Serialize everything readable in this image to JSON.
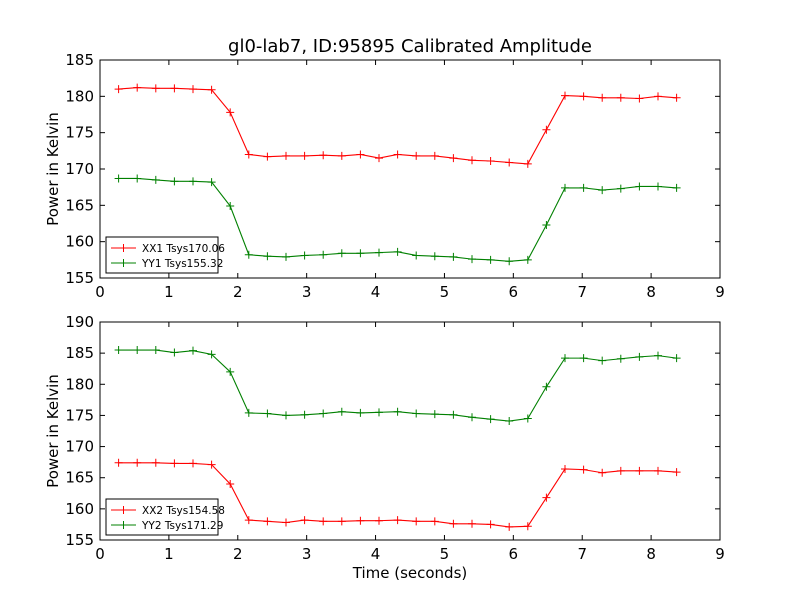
{
  "figure": {
    "title": "gl0-lab7, ID:95895 Calibrated Amplitude",
    "xlabel": "Time (seconds)"
  },
  "chart_data": [
    {
      "type": "line",
      "ylabel": "Power in Kelvin",
      "xlim": [
        0,
        9
      ],
      "ylim": [
        155,
        185
      ],
      "xticks": [
        0,
        1,
        2,
        3,
        4,
        5,
        6,
        7,
        8,
        9
      ],
      "yticks": [
        155,
        160,
        165,
        170,
        175,
        180,
        185
      ],
      "grid": false,
      "legend_position": "lower-left",
      "x": [
        0.27,
        0.54,
        0.81,
        1.08,
        1.35,
        1.62,
        1.89,
        2.16,
        2.43,
        2.7,
        2.97,
        3.24,
        3.51,
        3.78,
        4.05,
        4.32,
        4.59,
        4.86,
        5.13,
        5.4,
        5.67,
        5.94,
        6.21,
        6.48,
        6.75,
        7.02,
        7.29,
        7.56,
        7.83,
        8.1,
        8.37
      ],
      "series": [
        {
          "name": "XX1 Tsys170.06",
          "color": "#ff0000",
          "values": [
            181.0,
            181.2,
            181.1,
            181.1,
            181.0,
            180.9,
            177.8,
            172.0,
            171.7,
            171.8,
            171.8,
            171.9,
            171.8,
            172.0,
            171.5,
            172.0,
            171.8,
            171.8,
            171.5,
            171.2,
            171.1,
            170.9,
            170.7,
            175.4,
            180.1,
            180.0,
            179.8,
            179.8,
            179.7,
            180.0,
            179.8
          ]
        },
        {
          "name": "YY1 Tsys155.32",
          "color": "#008000",
          "values": [
            168.7,
            168.7,
            168.5,
            168.3,
            168.3,
            168.2,
            164.9,
            158.2,
            158.0,
            157.9,
            158.1,
            158.2,
            158.4,
            158.4,
            158.5,
            158.6,
            158.1,
            158.0,
            157.9,
            157.6,
            157.5,
            157.3,
            157.5,
            162.3,
            167.4,
            167.4,
            167.1,
            167.3,
            167.6,
            167.6,
            167.4
          ]
        }
      ]
    },
    {
      "type": "line",
      "ylabel": "Power in Kelvin",
      "xlim": [
        0,
        9
      ],
      "ylim": [
        155,
        190
      ],
      "xticks": [
        0,
        1,
        2,
        3,
        4,
        5,
        6,
        7,
        8,
        9
      ],
      "yticks": [
        155,
        160,
        165,
        170,
        175,
        180,
        185,
        190
      ],
      "grid": false,
      "legend_position": "lower-left",
      "x": [
        0.27,
        0.54,
        0.81,
        1.08,
        1.35,
        1.62,
        1.89,
        2.16,
        2.43,
        2.7,
        2.97,
        3.24,
        3.51,
        3.78,
        4.05,
        4.32,
        4.59,
        4.86,
        5.13,
        5.4,
        5.67,
        5.94,
        6.21,
        6.48,
        6.75,
        7.02,
        7.29,
        7.56,
        7.83,
        8.1,
        8.37
      ],
      "series": [
        {
          "name": "XX2 Tsys154.58",
          "color": "#ff0000",
          "values": [
            167.4,
            167.4,
            167.4,
            167.3,
            167.3,
            167.1,
            164.0,
            158.2,
            158.0,
            157.8,
            158.2,
            158.0,
            158.0,
            158.1,
            158.1,
            158.2,
            158.0,
            158.0,
            157.6,
            157.6,
            157.5,
            157.1,
            157.2,
            161.8,
            166.4,
            166.3,
            165.8,
            166.1,
            166.1,
            166.1,
            165.9
          ]
        },
        {
          "name": "YY2 Tsys171.29",
          "color": "#008000",
          "values": [
            185.5,
            185.5,
            185.5,
            185.1,
            185.4,
            184.8,
            182.0,
            175.4,
            175.3,
            175.0,
            175.1,
            175.3,
            175.6,
            175.4,
            175.5,
            175.6,
            175.3,
            175.2,
            175.1,
            174.7,
            174.4,
            174.1,
            174.5,
            179.6,
            184.2,
            184.2,
            183.8,
            184.1,
            184.4,
            184.6,
            184.2
          ]
        }
      ]
    }
  ]
}
